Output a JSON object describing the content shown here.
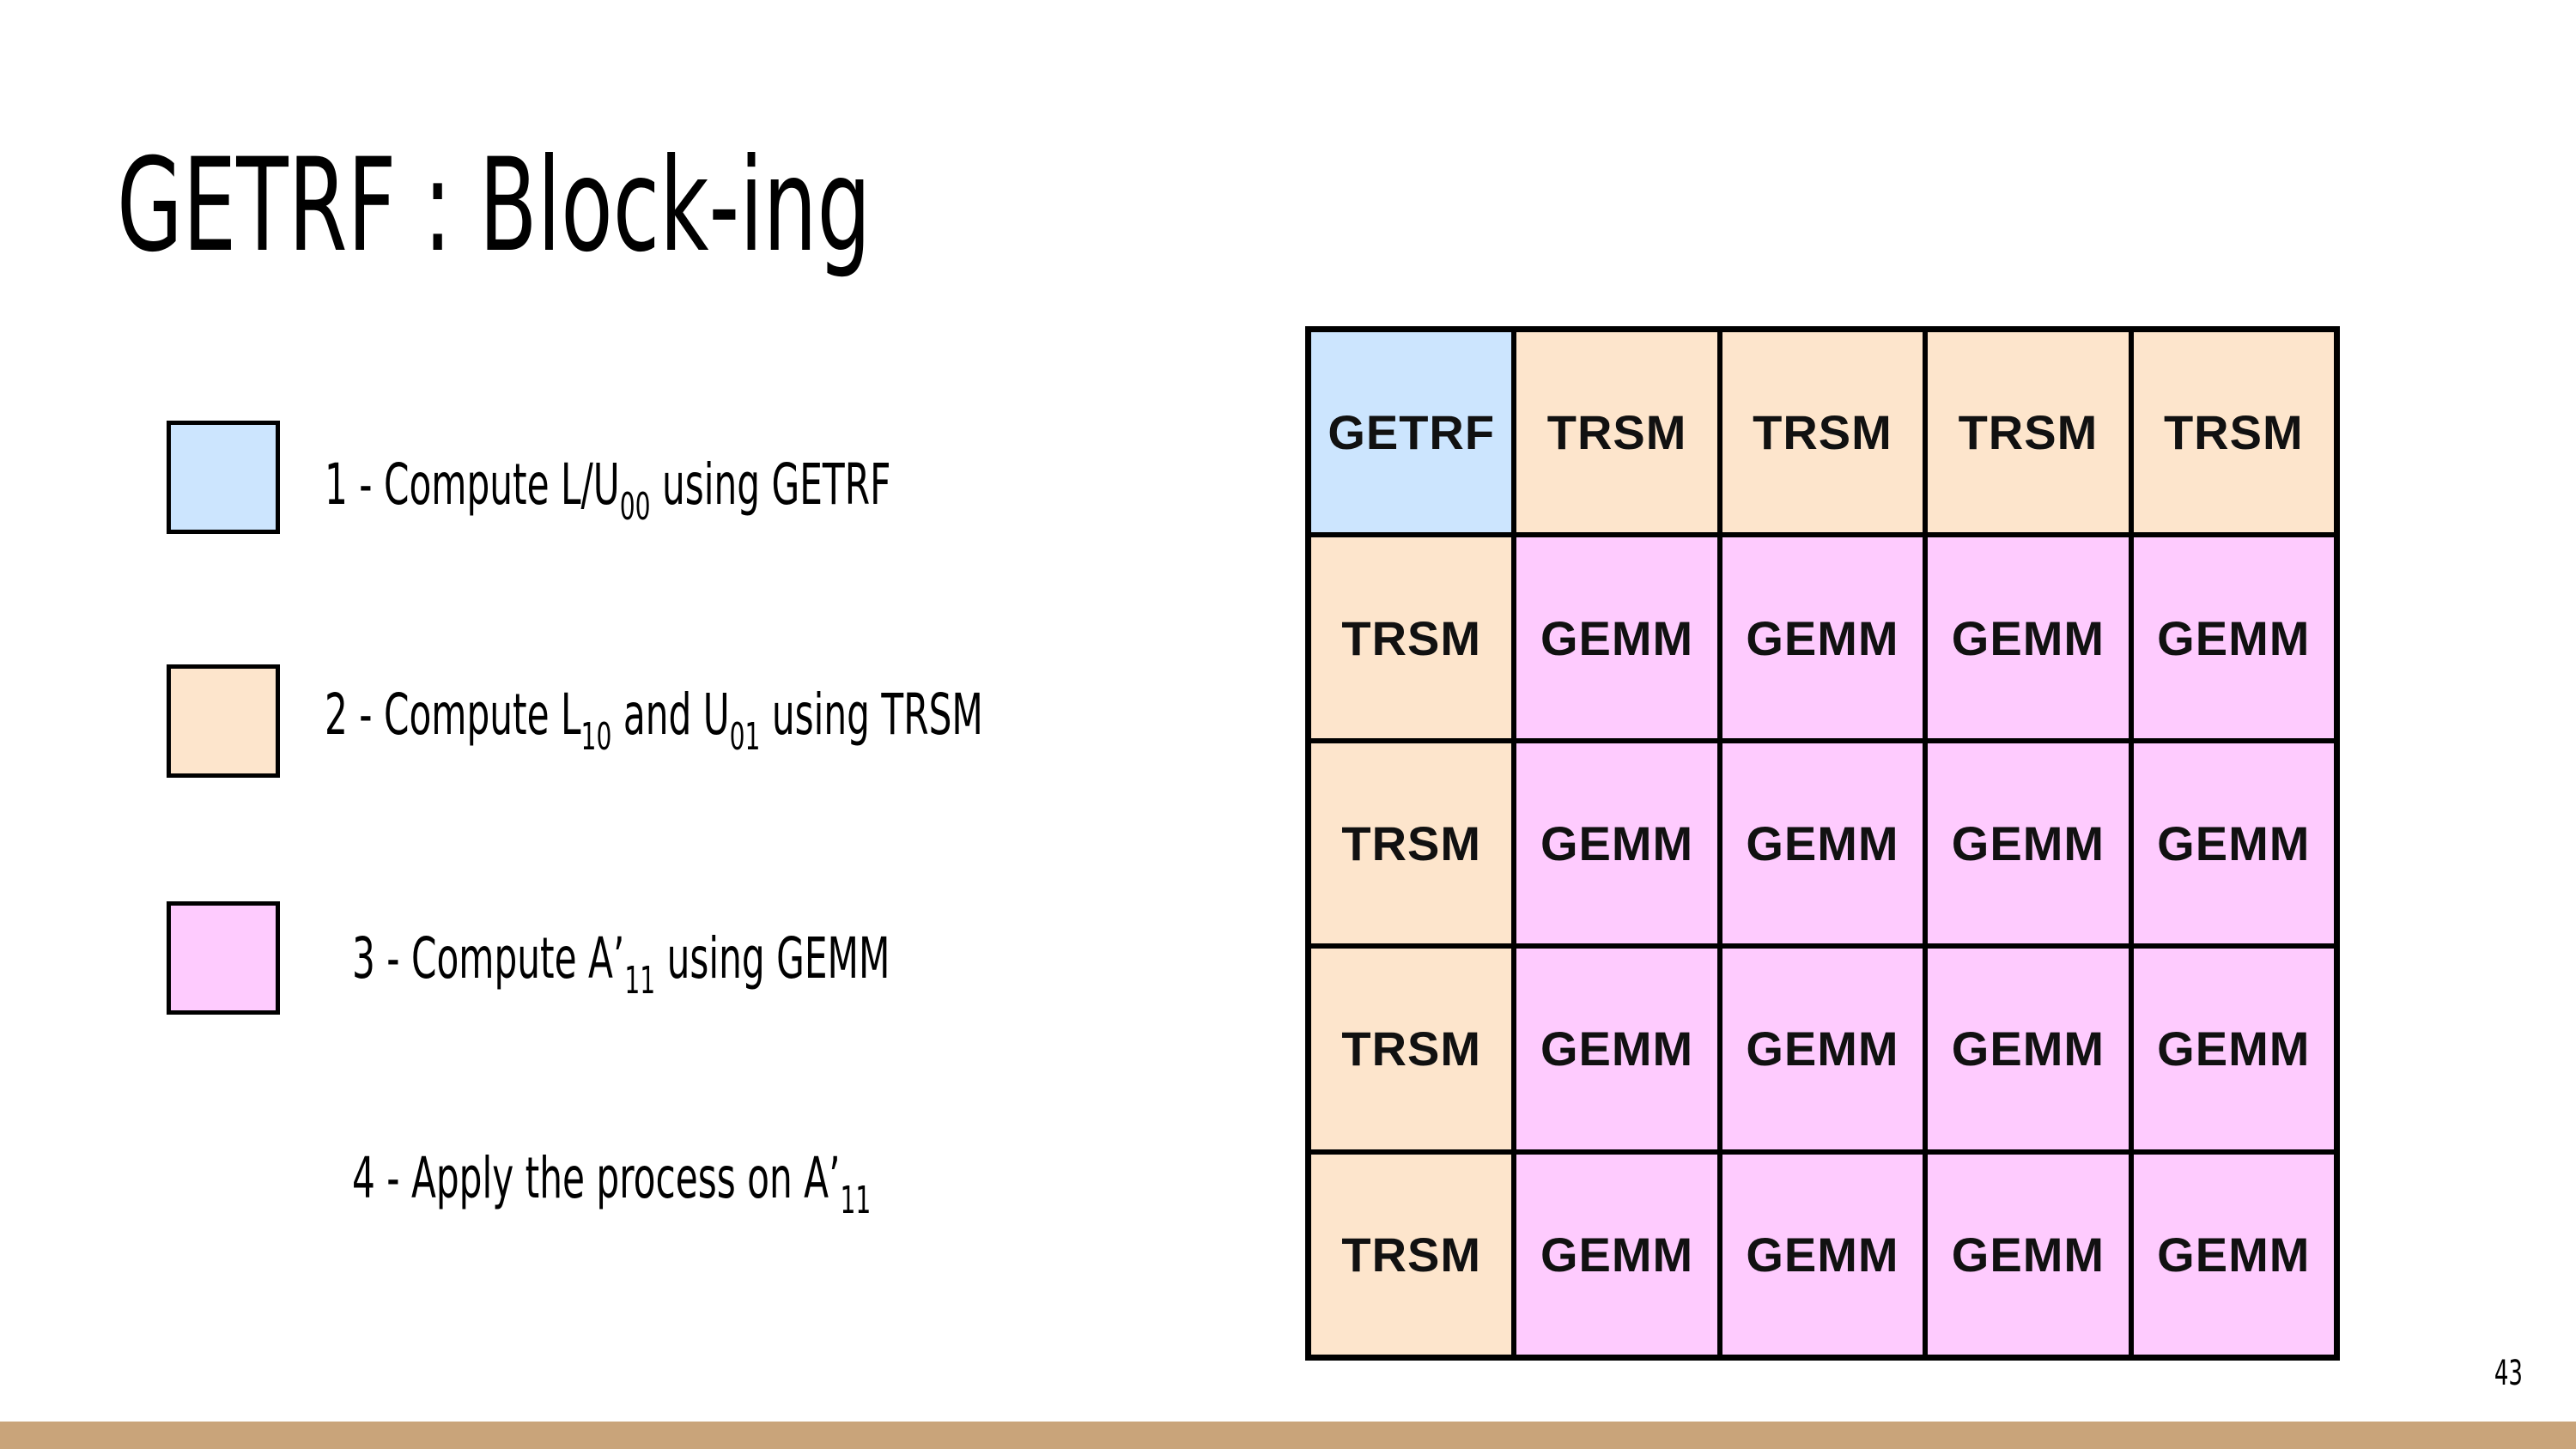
{
  "title": "GETRF : Block-ing",
  "colors": {
    "getrf": "#cce5fe",
    "trsm": "#fde5cc",
    "gemm": "#fecbfe",
    "footer": "#c9a47a"
  },
  "legend": [
    {
      "num": "1 - Compute L/U",
      "sub1": "00",
      "mid": " using GETRF",
      "sub2": "",
      "tail": "",
      "color": "getrf"
    },
    {
      "num": "2 - Compute L",
      "sub1": "10",
      "mid": " and U",
      "sub2": "01",
      "tail": " using TRSM",
      "color": "trsm"
    },
    {
      "num": "3 - Compute A’",
      "sub1": "11",
      "mid": " using GEMM",
      "sub2": "",
      "tail": "",
      "color": "gemm"
    },
    {
      "num": "4 - Apply the process on A’",
      "sub1": "11",
      "mid": "",
      "sub2": "",
      "tail": "",
      "color": null
    }
  ],
  "grid": {
    "rows": [
      [
        "GETRF",
        "TRSM",
        "TRSM",
        "TRSM",
        "TRSM"
      ],
      [
        "TRSM",
        "GEMM",
        "GEMM",
        "GEMM",
        "GEMM"
      ],
      [
        "TRSM",
        "GEMM",
        "GEMM",
        "GEMM",
        "GEMM"
      ],
      [
        "TRSM",
        "GEMM",
        "GEMM",
        "GEMM",
        "GEMM"
      ],
      [
        "TRSM",
        "GEMM",
        "GEMM",
        "GEMM",
        "GEMM"
      ]
    ]
  },
  "page_number": "43"
}
